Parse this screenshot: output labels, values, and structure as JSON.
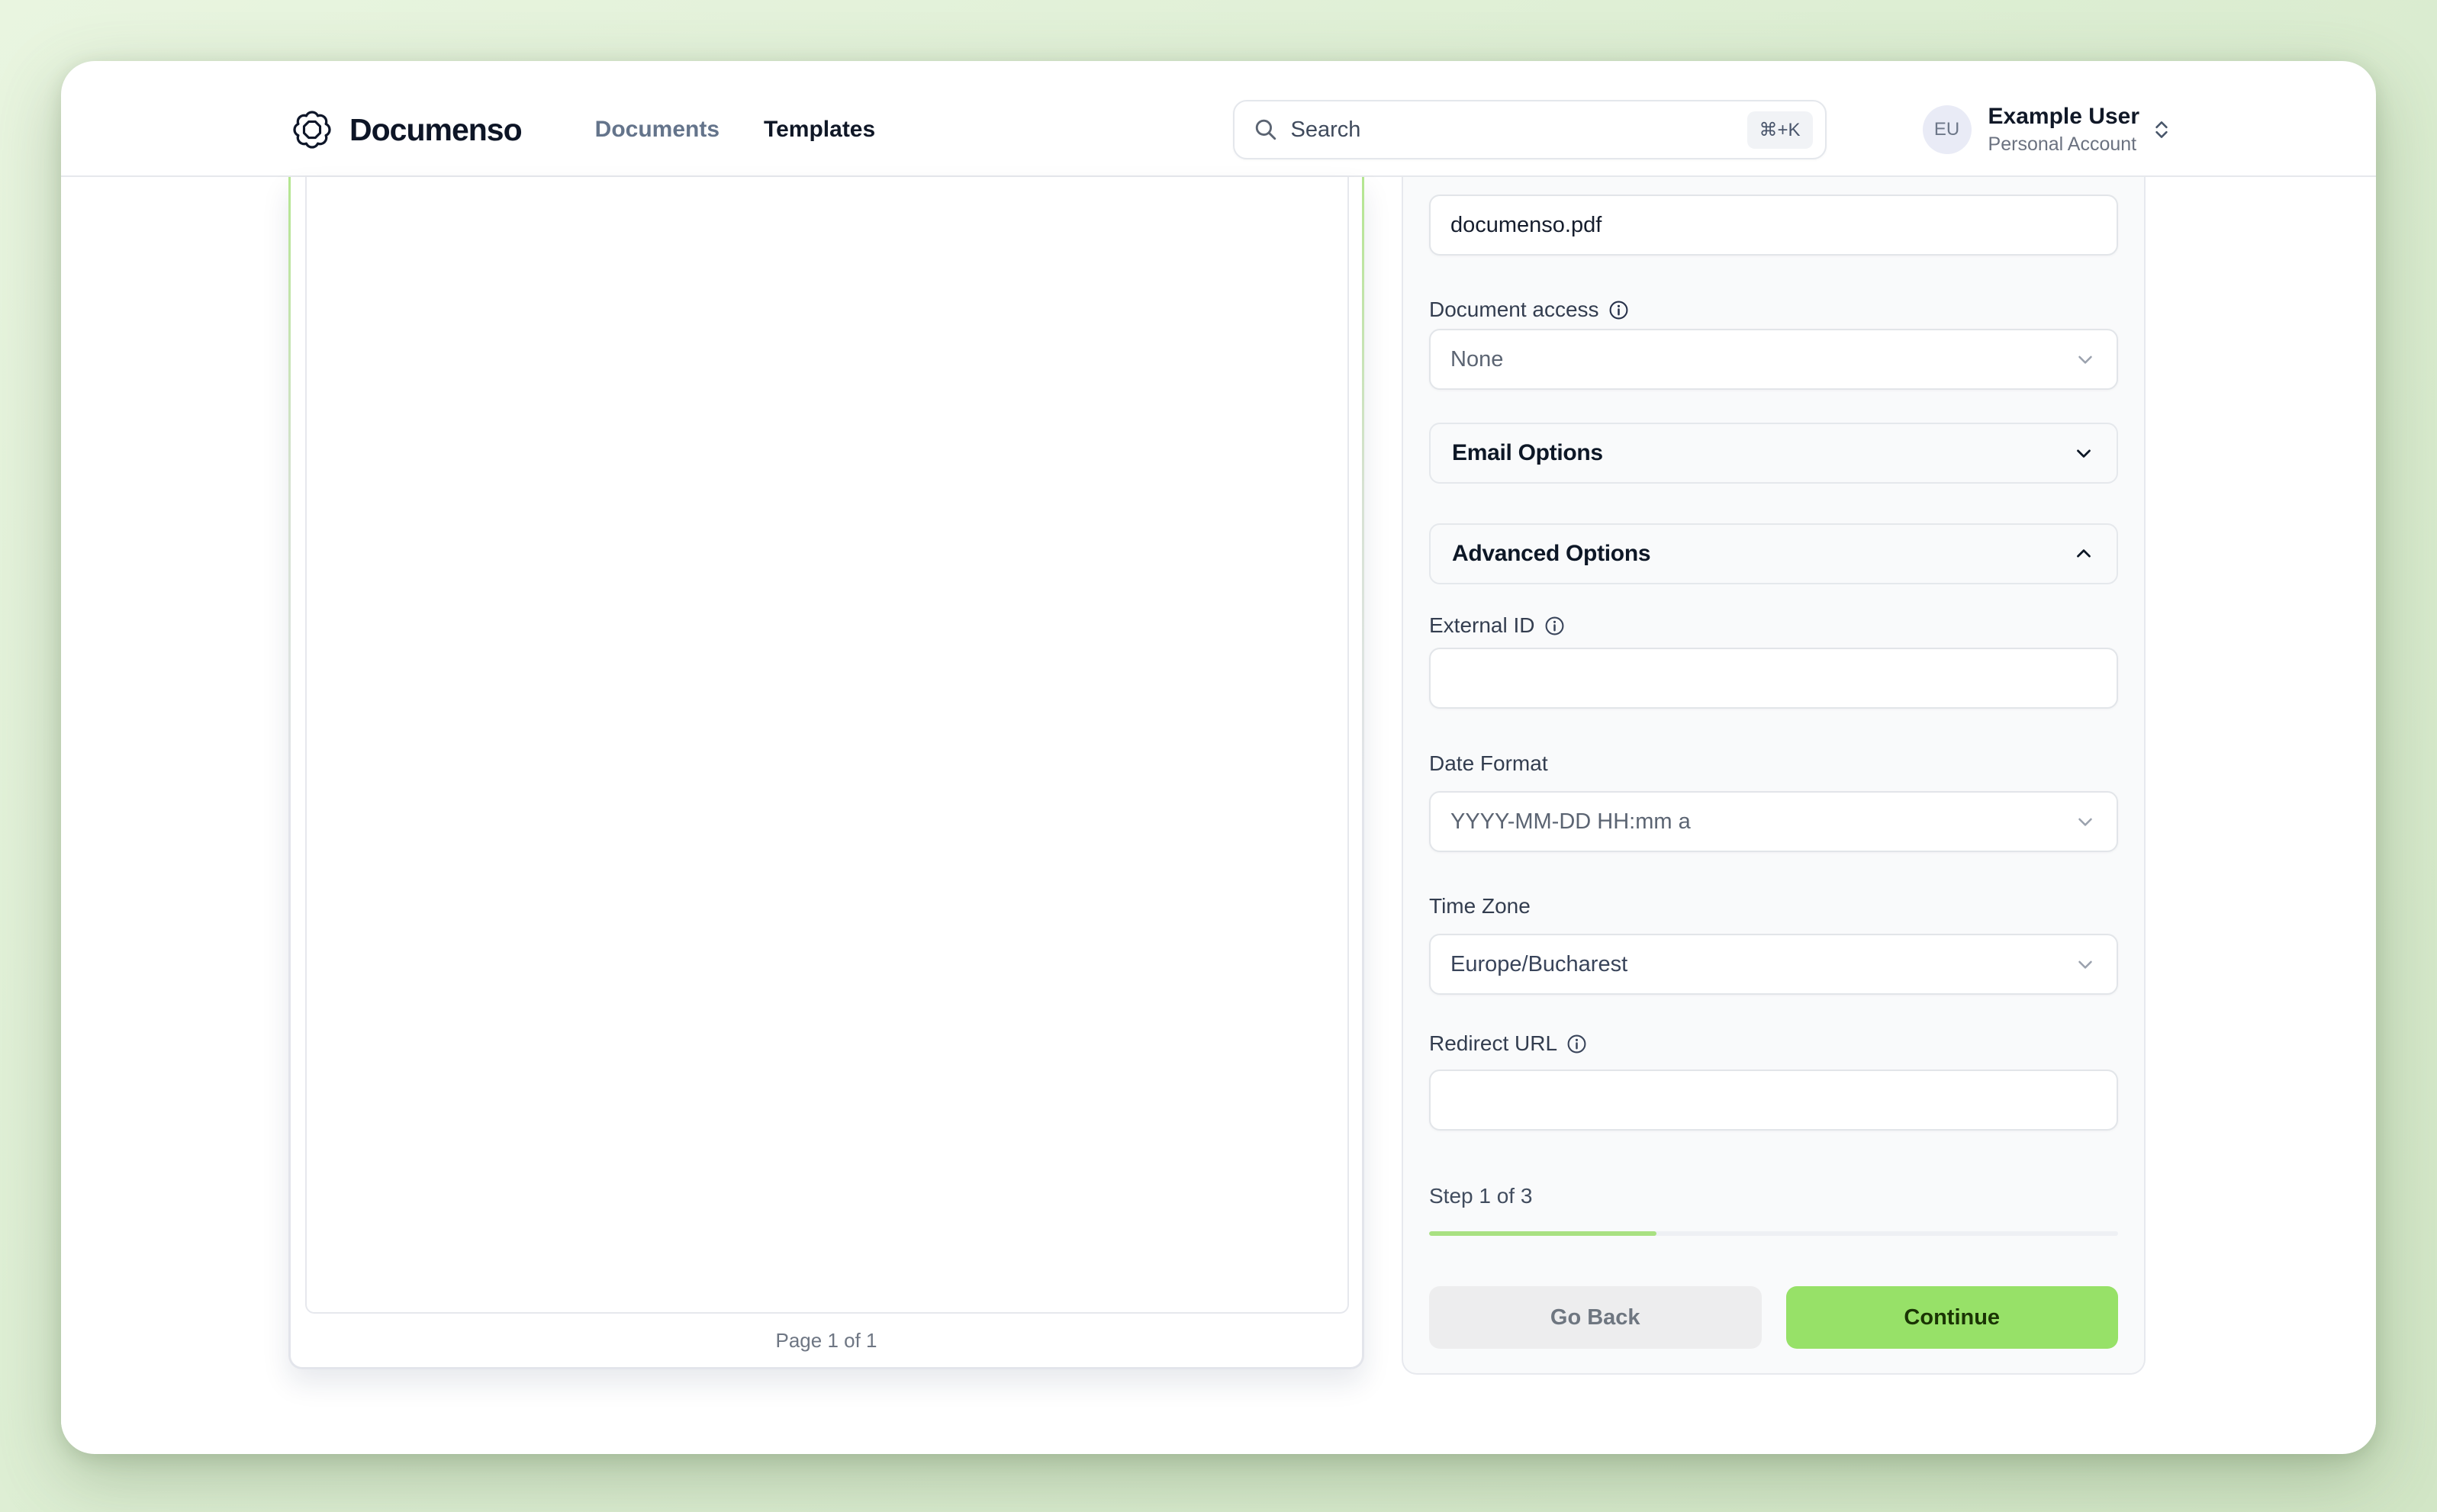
{
  "header": {
    "logo_text": "Documenso",
    "nav": [
      {
        "label": "Documents"
      },
      {
        "label": "Templates"
      }
    ],
    "search": {
      "placeholder": "Search",
      "shortcut": "⌘+K"
    },
    "user": {
      "initials": "EU",
      "name": "Example User",
      "account_type": "Personal Account"
    }
  },
  "document_viewer": {
    "page_indicator": "Page 1 of 1"
  },
  "panel": {
    "title_value": "documenso.pdf",
    "document_access": {
      "label": "Document access",
      "value": "None"
    },
    "sections": {
      "email": "Email Options",
      "advanced": "Advanced Options"
    },
    "external_id": {
      "label": "External ID",
      "value": ""
    },
    "date_format": {
      "label": "Date Format",
      "value": "YYYY-MM-DD HH:mm a"
    },
    "time_zone": {
      "label": "Time Zone",
      "value": "Europe/Bucharest"
    },
    "redirect_url": {
      "label": "Redirect URL",
      "value": ""
    },
    "step": {
      "label": "Step 1 of 3",
      "progress_percent": 33
    },
    "buttons": {
      "back": "Go Back",
      "continue": "Continue"
    }
  },
  "colors": {
    "brand_navy": "#0d1526",
    "accent_green": "#97e168",
    "progress_green": "#a9e182",
    "page_background_green": "#ddeed3",
    "panel_background": "#f9fafb"
  }
}
